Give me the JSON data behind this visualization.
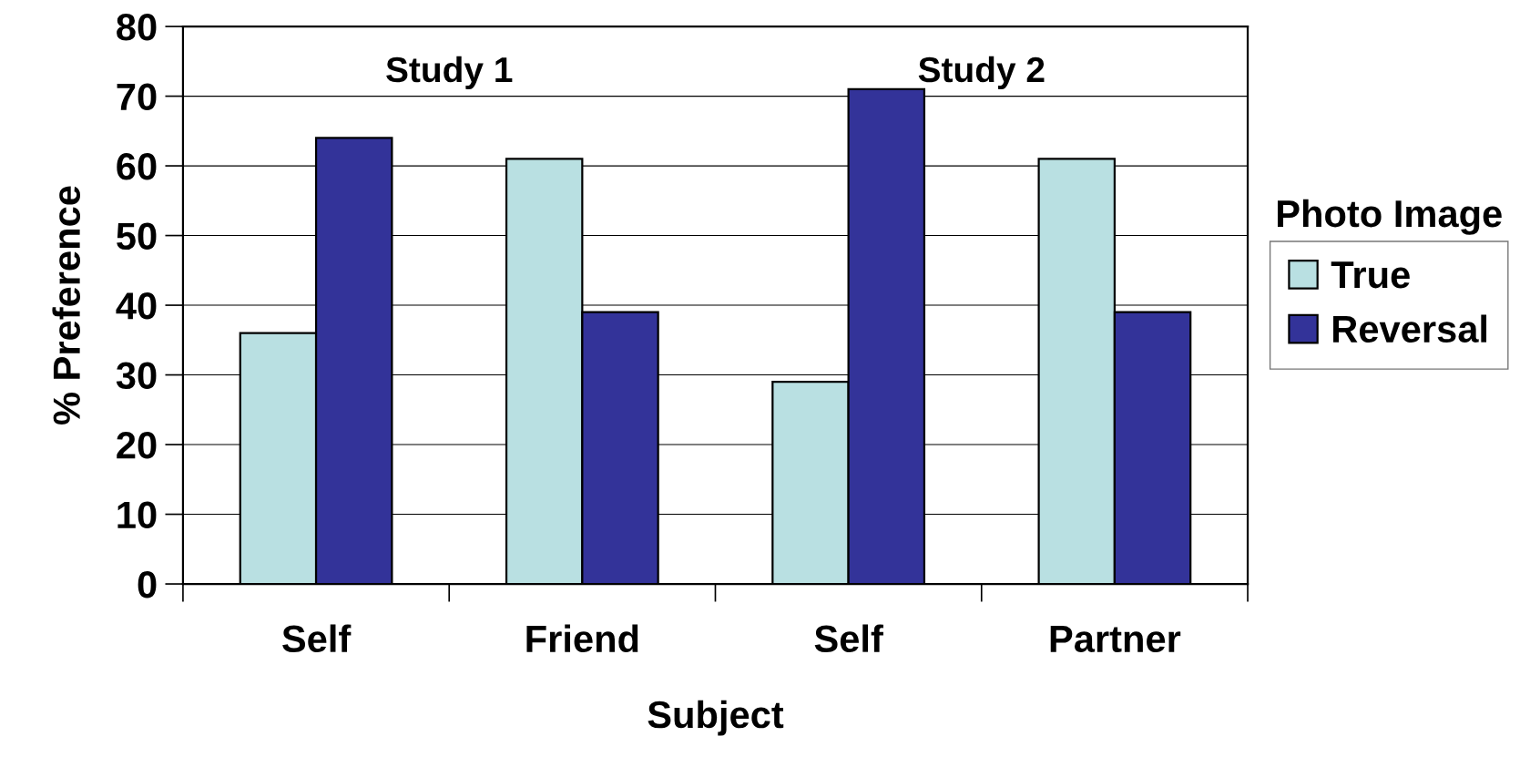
{
  "chart_data": {
    "type": "bar",
    "categories": [
      "Self",
      "Friend",
      "Self",
      "Partner"
    ],
    "series": [
      {
        "name": "True",
        "color": "#b9e0e2",
        "values": [
          36,
          61,
          29,
          61
        ]
      },
      {
        "name": "Reversal",
        "color": "#333399",
        "values": [
          64,
          39,
          71,
          39
        ]
      }
    ],
    "xlabel": "Subject",
    "ylabel": "% Preference",
    "legend_title": "Photo Image",
    "legend": "right",
    "ylim": [
      0,
      80
    ],
    "yticks": [
      0,
      10,
      20,
      30,
      40,
      50,
      60,
      70,
      80
    ],
    "grid": "y",
    "annotations": [
      "Study 1",
      "Study 2"
    ]
  }
}
